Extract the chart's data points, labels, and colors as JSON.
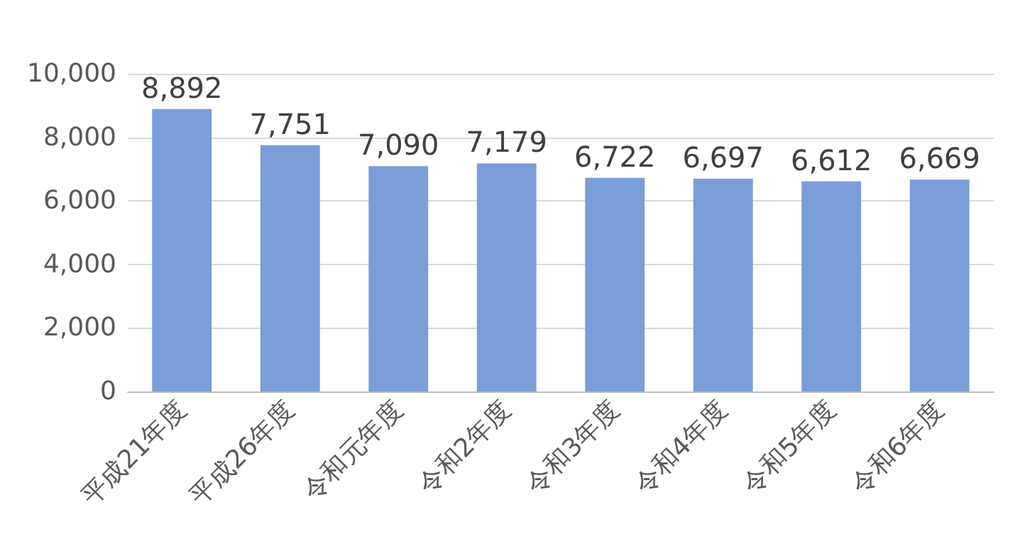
{
  "chart_data": {
    "type": "bar",
    "categories": [
      "平成21年度",
      "平成26年度",
      "令和元年度",
      "令和2年度",
      "令和3年度",
      "令和4年度",
      "令和5年度",
      "令和6年度"
    ],
    "values": [
      8892,
      7751,
      7090,
      7179,
      6722,
      6697,
      6612,
      6669
    ],
    "value_labels": [
      "8,892",
      "7,751",
      "7,090",
      "7,179",
      "6,722",
      "6,697",
      "6,612",
      "6,669"
    ],
    "color": "#7a9dd7",
    "ylim": [
      0,
      10000
    ],
    "yticks": [
      0,
      {
        "value": 2000,
        "label": "2,000"
      },
      {
        "value": 4000,
        "label": "4,000"
      },
      {
        "value": 6000,
        "label": "6,000"
      },
      {
        "value": 8000,
        "label": "8,000"
      },
      {
        "value": 10000,
        "label": "10,000"
      }
    ],
    "grid": "y"
  }
}
